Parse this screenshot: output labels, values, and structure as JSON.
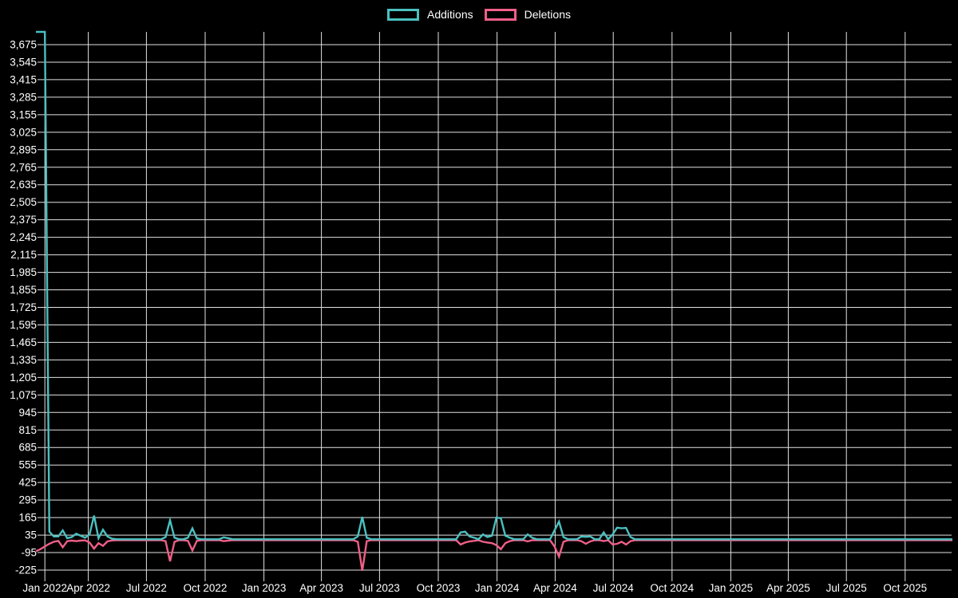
{
  "legend": {
    "items": [
      {
        "label": "Additions",
        "color": "#4bc0c0"
      },
      {
        "label": "Deletions",
        "color": "#ef5f88"
      }
    ]
  },
  "colors": {
    "background": "#000000",
    "grid": "#e2e2e2",
    "tick_text": "#ffffff",
    "additions": "#4bc0c0",
    "deletions": "#ef5f88"
  },
  "chart_data": {
    "type": "line",
    "title": "",
    "xlabel": "",
    "ylabel": "",
    "legend_position": "top-center",
    "grid": true,
    "ylim": [
      -245,
      3805
    ],
    "y_axis": {
      "ticks": [
        -225,
        -95,
        35,
        165,
        295,
        425,
        555,
        685,
        815,
        945,
        1075,
        1205,
        1335,
        1465,
        1595,
        1725,
        1855,
        1985,
        2115,
        2245,
        2375,
        2505,
        2635,
        2765,
        2895,
        3025,
        3155,
        3285,
        3415,
        3545,
        3675
      ],
      "tick_step": 130,
      "number_format": "thousands-comma"
    },
    "x_axis": {
      "unit": "week",
      "start_week": "2022-01-09",
      "total_weeks": 206,
      "ticks": [
        {
          "label": "Jan 2022",
          "date": "2022-01-23"
        },
        {
          "label": "Apr 2022",
          "date": "2022-04-01"
        },
        {
          "label": "Jul 2022",
          "date": "2022-07-01"
        },
        {
          "label": "Oct 2022",
          "date": "2022-10-01"
        },
        {
          "label": "Jan 2023",
          "date": "2023-01-01"
        },
        {
          "label": "Apr 2023",
          "date": "2023-04-01"
        },
        {
          "label": "Jul 2023",
          "date": "2023-07-01"
        },
        {
          "label": "Oct 2023",
          "date": "2023-10-01"
        },
        {
          "label": "Jan 2024",
          "date": "2024-01-01"
        },
        {
          "label": "Apr 2024",
          "date": "2024-04-01"
        },
        {
          "label": "Jul 2024",
          "date": "2024-07-01"
        },
        {
          "label": "Oct 2024",
          "date": "2024-10-01"
        },
        {
          "label": "Jan 2025",
          "date": "2025-01-01"
        },
        {
          "label": "Apr 2025",
          "date": "2025-04-01"
        },
        {
          "label": "Jul 2025",
          "date": "2025-07-01"
        },
        {
          "label": "Oct 2025",
          "date": "2025-10-01"
        }
      ]
    },
    "series": [
      {
        "name": "Additions",
        "color": "#4bc0c0",
        "baseline_value": 4,
        "notable_weeks": {
          "0": 3805,
          "1": 3805,
          "2": 3781,
          "3": 60,
          "4": 25,
          "5": 25,
          "6": 70,
          "7": 12,
          "8": 20,
          "9": 45,
          "10": 30,
          "11": 15,
          "12": 40,
          "13": 180,
          "14": 12,
          "15": 75,
          "16": 25,
          "17": 8,
          "29": 20,
          "30": 145,
          "31": 15,
          "34": 15,
          "35": 85,
          "36": 10,
          "42": 18,
          "43": 12,
          "72": 25,
          "73": 170,
          "74": 15,
          "95": 55,
          "96": 60,
          "97": 25,
          "98": 15,
          "100": 40,
          "101": 20,
          "102": 30,
          "103": 165,
          "104": 160,
          "105": 30,
          "106": 15,
          "110": 40,
          "111": 15,
          "116": 70,
          "117": 135,
          "118": 20,
          "122": 25,
          "123": 22,
          "124": 25,
          "127": 55,
          "129": 40,
          "130": 90,
          "131": 85,
          "132": 88,
          "133": 20
        }
      },
      {
        "name": "Deletions",
        "color": "#ef5f88",
        "baseline_value": -3,
        "notable_weeks": {
          "0": -85,
          "1": -70,
          "2": -50,
          "3": -30,
          "4": -15,
          "5": -8,
          "6": -55,
          "7": -10,
          "8": -6,
          "9": -10,
          "10": -6,
          "11": -4,
          "12": -20,
          "13": -65,
          "14": -25,
          "15": -45,
          "16": -12,
          "17": -5,
          "29": -10,
          "30": -160,
          "31": -15,
          "34": -8,
          "35": -80,
          "36": -8,
          "42": -10,
          "43": -6,
          "72": -15,
          "73": -230,
          "74": -10,
          "95": -35,
          "96": -20,
          "97": -12,
          "98": -8,
          "100": -15,
          "101": -20,
          "102": -25,
          "103": -40,
          "104": -70,
          "105": -25,
          "106": -10,
          "110": -12,
          "116": -50,
          "117": -125,
          "118": -15,
          "122": -10,
          "123": -30,
          "124": -12,
          "127": -10,
          "129": -35,
          "130": -30,
          "131": -15,
          "132": -35,
          "133": -10
        }
      }
    ]
  }
}
